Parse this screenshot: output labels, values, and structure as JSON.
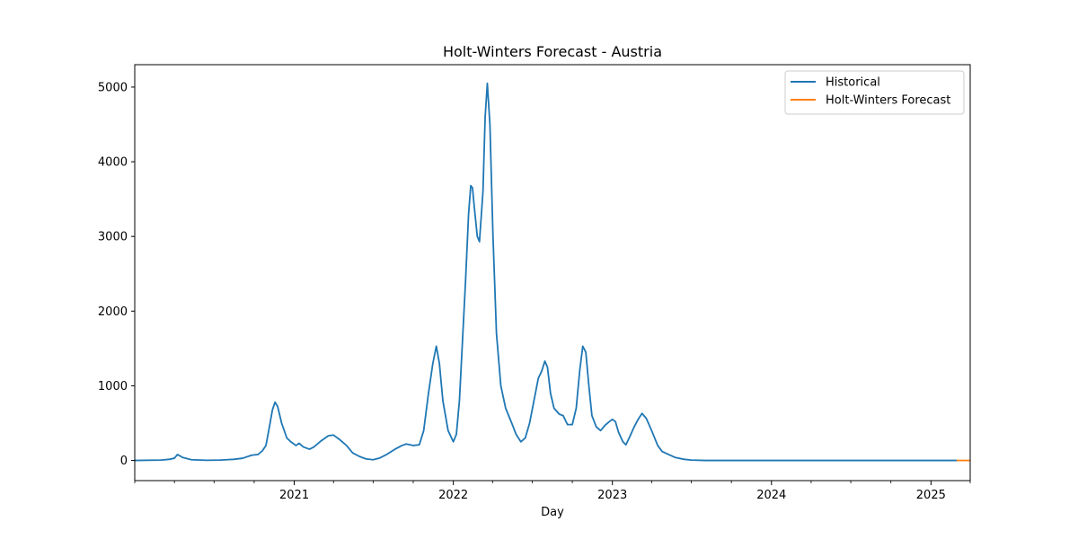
{
  "chart_data": {
    "type": "line",
    "title": "Holt-Winters Forecast - Austria",
    "xlabel": "Day",
    "ylabel": "",
    "xlim": [
      "2020-01-01",
      "2025-04-01"
    ],
    "ylim": [
      -270,
      5300
    ],
    "x_ticks": [
      "2021",
      "2022",
      "2023",
      "2024",
      "2025"
    ],
    "y_ticks": [
      0,
      1000,
      2000,
      3000,
      4000,
      5000
    ],
    "grid": false,
    "legend_position": "top-right",
    "series": [
      {
        "name": "Historical",
        "color": "#1f77b4",
        "points": [
          [
            "2020-01-01",
            0
          ],
          [
            "2020-03-01",
            5
          ],
          [
            "2020-03-20",
            15
          ],
          [
            "2020-04-01",
            30
          ],
          [
            "2020-04-08",
            80
          ],
          [
            "2020-04-20",
            40
          ],
          [
            "2020-05-10",
            10
          ],
          [
            "2020-06-15",
            2
          ],
          [
            "2020-07-15",
            5
          ],
          [
            "2020-08-15",
            15
          ],
          [
            "2020-09-05",
            30
          ],
          [
            "2020-09-25",
            70
          ],
          [
            "2020-10-10",
            80
          ],
          [
            "2020-10-20",
            130
          ],
          [
            "2020-10-28",
            200
          ],
          [
            "2020-11-05",
            450
          ],
          [
            "2020-11-12",
            680
          ],
          [
            "2020-11-18",
            780
          ],
          [
            "2020-11-24",
            720
          ],
          [
            "2020-12-03",
            500
          ],
          [
            "2020-12-15",
            300
          ],
          [
            "2020-12-24",
            250
          ],
          [
            "2021-01-05",
            200
          ],
          [
            "2021-01-12",
            230
          ],
          [
            "2021-01-22",
            180
          ],
          [
            "2021-02-05",
            150
          ],
          [
            "2021-02-15",
            180
          ],
          [
            "2021-03-01",
            250
          ],
          [
            "2021-03-20",
            330
          ],
          [
            "2021-04-01",
            340
          ],
          [
            "2021-04-15",
            280
          ],
          [
            "2021-05-01",
            200
          ],
          [
            "2021-05-15",
            100
          ],
          [
            "2021-06-01",
            50
          ],
          [
            "2021-06-15",
            20
          ],
          [
            "2021-07-01",
            10
          ],
          [
            "2021-07-15",
            30
          ],
          [
            "2021-08-01",
            80
          ],
          [
            "2021-08-20",
            150
          ],
          [
            "2021-09-05",
            200
          ],
          [
            "2021-09-15",
            220
          ],
          [
            "2021-10-01",
            200
          ],
          [
            "2021-10-15",
            210
          ],
          [
            "2021-10-25",
            400
          ],
          [
            "2021-11-05",
            900
          ],
          [
            "2021-11-15",
            1300
          ],
          [
            "2021-11-23",
            1530
          ],
          [
            "2021-11-30",
            1300
          ],
          [
            "2021-12-08",
            800
          ],
          [
            "2021-12-20",
            400
          ],
          [
            "2022-01-01",
            250
          ],
          [
            "2022-01-08",
            350
          ],
          [
            "2022-01-15",
            800
          ],
          [
            "2022-01-22",
            1600
          ],
          [
            "2022-01-29",
            2400
          ],
          [
            "2022-02-05",
            3300
          ],
          [
            "2022-02-10",
            3680
          ],
          [
            "2022-02-14",
            3650
          ],
          [
            "2022-02-18",
            3400
          ],
          [
            "2022-02-25",
            3000
          ],
          [
            "2022-03-02",
            2930
          ],
          [
            "2022-03-10",
            3600
          ],
          [
            "2022-03-15",
            4600
          ],
          [
            "2022-03-20",
            5050
          ],
          [
            "2022-03-26",
            4500
          ],
          [
            "2022-04-02",
            3000
          ],
          [
            "2022-04-10",
            1700
          ],
          [
            "2022-04-20",
            1000
          ],
          [
            "2022-05-01",
            700
          ],
          [
            "2022-05-15",
            500
          ],
          [
            "2022-05-25",
            350
          ],
          [
            "2022-06-05",
            250
          ],
          [
            "2022-06-15",
            300
          ],
          [
            "2022-06-25",
            500
          ],
          [
            "2022-07-05",
            800
          ],
          [
            "2022-07-15",
            1100
          ],
          [
            "2022-07-23",
            1200
          ],
          [
            "2022-07-30",
            1330
          ],
          [
            "2022-08-05",
            1250
          ],
          [
            "2022-08-12",
            900
          ],
          [
            "2022-08-20",
            700
          ],
          [
            "2022-09-01",
            620
          ],
          [
            "2022-09-10",
            600
          ],
          [
            "2022-09-20",
            480
          ],
          [
            "2022-10-01",
            480
          ],
          [
            "2022-10-10",
            700
          ],
          [
            "2022-10-18",
            1200
          ],
          [
            "2022-10-25",
            1530
          ],
          [
            "2022-11-01",
            1450
          ],
          [
            "2022-11-08",
            1000
          ],
          [
            "2022-11-15",
            600
          ],
          [
            "2022-11-25",
            450
          ],
          [
            "2022-12-05",
            400
          ],
          [
            "2022-12-15",
            470
          ],
          [
            "2022-12-25",
            520
          ],
          [
            "2023-01-01",
            550
          ],
          [
            "2023-01-08",
            520
          ],
          [
            "2023-01-15",
            380
          ],
          [
            "2023-01-25",
            250
          ],
          [
            "2023-02-01",
            210
          ],
          [
            "2023-02-10",
            320
          ],
          [
            "2023-02-20",
            450
          ],
          [
            "2023-03-01",
            550
          ],
          [
            "2023-03-10",
            630
          ],
          [
            "2023-03-20",
            560
          ],
          [
            "2023-04-01",
            400
          ],
          [
            "2023-04-15",
            200
          ],
          [
            "2023-04-25",
            120
          ],
          [
            "2023-05-10",
            80
          ],
          [
            "2023-05-25",
            40
          ],
          [
            "2023-06-15",
            15
          ],
          [
            "2023-07-01",
            5
          ],
          [
            "2023-08-01",
            0
          ],
          [
            "2025-03-01",
            0
          ]
        ]
      },
      {
        "name": "Holt-Winters Forecast",
        "color": "#ff7f0e",
        "points": [
          [
            "2025-03-01",
            0
          ],
          [
            "2025-04-01",
            0
          ]
        ]
      }
    ]
  }
}
